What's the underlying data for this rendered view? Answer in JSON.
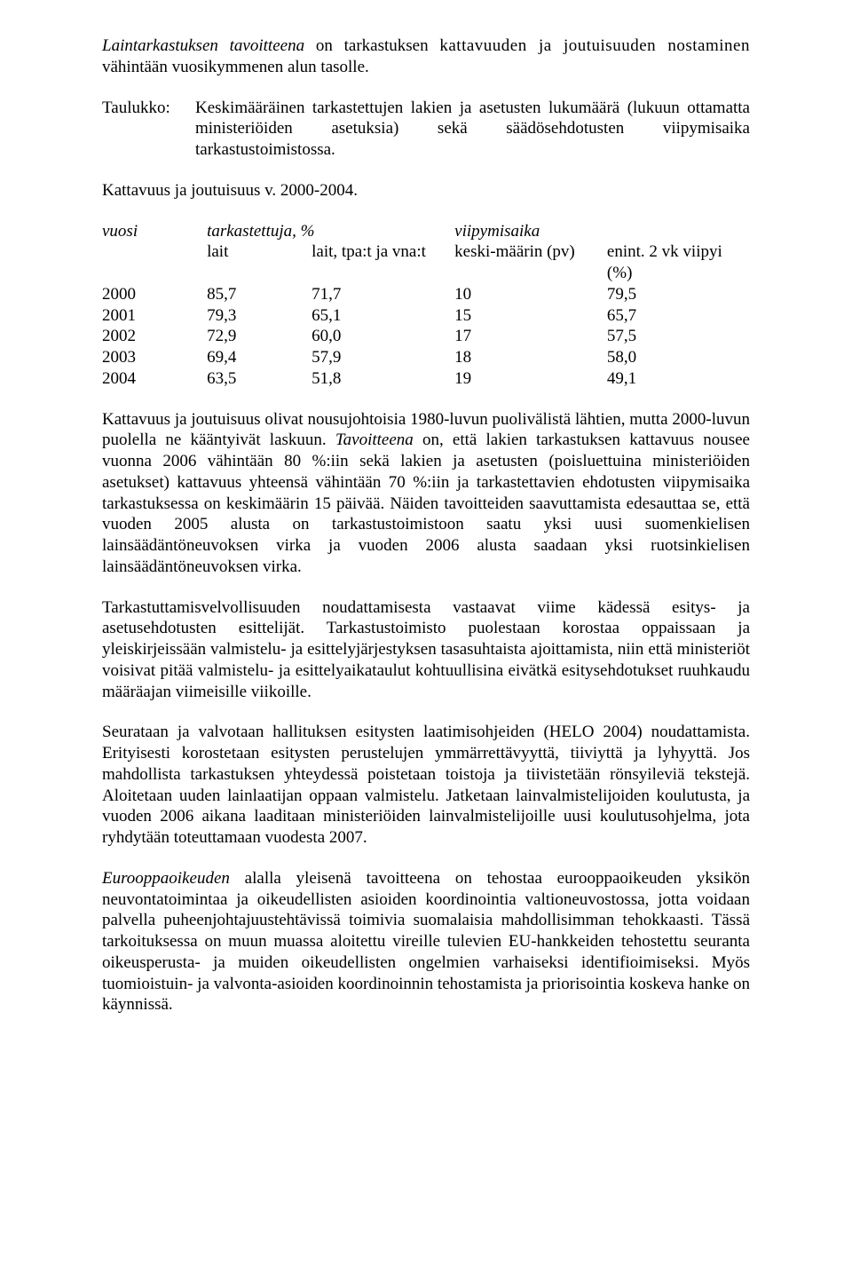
{
  "p1_a": "Laintarkastuksen tavoitteena",
  "p1_b": " on tarkastuksen ",
  "p1_c": "kattavuuden ja joutuisuuden nostaminen",
  "p1_d": " vähintään vuosikymmenen alun tasolle.",
  "tableIntro": {
    "label": "Taulukko:",
    "text": "Keskimääräinen tarkastettujen lakien ja asetusten lukumäärä (lukuun ottamatta ministeriöiden asetuksia) sekä säädösehdotusten viipymisaika tarkastustoimistossa."
  },
  "p2": "Kattavuus ja joutuisuus v. 2000-2004.",
  "table": {
    "hdr": {
      "vuosi": "vuosi",
      "tark": "tarkastettuja, %",
      "viipy": "viipymisaika",
      "lait": "lait",
      "laittpa": "lait, tpa:t ja vna:t",
      "keski": "keski-määrin (pv)",
      "enint": "enint. 2 vk viipyi (%)"
    },
    "rows": [
      {
        "vuosi": "2000",
        "lait": "85,7",
        "laittpa": "71,7",
        "keski": "10",
        "enint": "79,5"
      },
      {
        "vuosi": "2001",
        "lait": "79,3",
        "laittpa": "65,1",
        "keski": "15",
        "enint": "65,7"
      },
      {
        "vuosi": "2002",
        "lait": "72,9",
        "laittpa": "60,0",
        "keski": "17",
        "enint": "57,5"
      },
      {
        "vuosi": "2003",
        "lait": "69,4",
        "laittpa": "57,9",
        "keski": "18",
        "enint": "58,0"
      },
      {
        "vuosi": "2004",
        "lait": "63,5",
        "laittpa": "51,8",
        "keski": "19",
        "enint": "49,1"
      }
    ]
  },
  "p3_a": "Kattavuus ja joutuisuus olivat nousujohtoisia 1980-luvun puolivälistä lähtien, mutta 2000-luvun puolella ne kääntyivät laskuun. ",
  "p3_b": "Tavoitteena",
  "p3_c": " on, että lakien tarkastuksen kattavuus nousee vuonna 2006 vähintään 80 %:iin sekä  lakien ja asetusten (poisluettuina ministeriöiden asetukset) kattavuus yhteensä vähintään 70 %:iin ja tarkastettavien ehdotusten viipymisaika tarkastuksessa on keskimäärin 15 päivää. Näiden tavoitteiden saavuttamista edesauttaa se, että vuoden 2005 alusta on tarkastustoimistoon saatu yksi uusi suomenkielisen lainsäädäntöneuvoksen virka ja vuoden 2006 alusta saadaan yksi ruotsinkielisen lainsäädäntöneuvoksen virka.",
  "p4": "Tarkastuttamisvelvollisuuden noudattamisesta vastaavat viime kädessä esitys- ja asetusehdotusten esittelijät. Tarkastustoimisto puolestaan korostaa oppaissaan ja yleiskirjeissään valmistelu- ja esittelyjärjestyksen tasasuhtaista ajoittamista, niin että ministeriöt voisivat pitää valmistelu- ja esittelyaikataulut kohtuullisina eivätkä esitysehdotukset ruuhkaudu määräajan viimeisille viikoille.",
  "p5": "Seurataan ja valvotaan hallituksen esitysten laatimisohjeiden (HELO 2004) noudattamista. Erityisesti korostetaan esitysten perustelujen ymmärrettävyyttä, tiiviyttä ja lyhyyttä. Jos mahdollista tarkastuksen yhteydessä poistetaan toistoja ja tiivistetään rönsyileviä tekstejä. Aloitetaan uuden lainlaatijan oppaan valmistelu. Jatketaan lainvalmistelijoiden koulutusta, ja vuoden 2006 aikana laaditaan ministeriöiden lainvalmistelijoille uusi koulutusohjelma, jota ryhdytään  toteuttamaan vuodesta 2007.",
  "p6_a": "Eurooppaoikeuden",
  "p6_b": " alalla yleisenä tavoitteena on tehostaa eurooppaoikeuden yksikön neuvontatoimintaa ja oikeudellisten asioiden koordinointia valtioneuvostossa, jotta voidaan palvella puheenjohtajuustehtävissä toimivia suomalaisia mahdollisimman tehokkaasti. Tässä tarkoituksessa on muun muassa aloitettu vireille tulevien EU-hankkeiden tehostettu seuranta oikeusperusta- ja muiden oikeudellisten ongelmien varhaiseksi identifioimiseksi. Myös tuomioistuin- ja valvonta-asioiden koordinoinnin tehostamista ja priorisointia koskeva hanke on käynnissä."
}
